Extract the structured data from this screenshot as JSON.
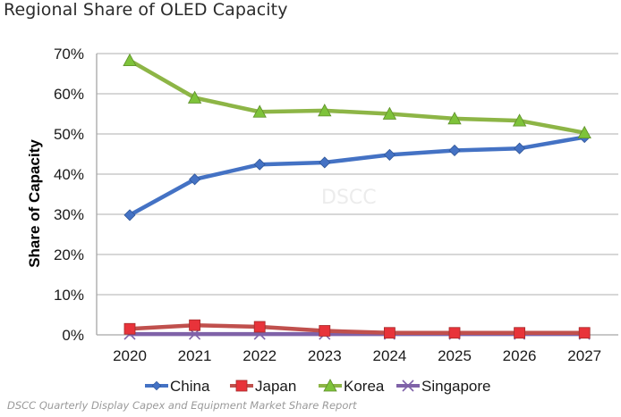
{
  "title": "Regional Share of OLED Capacity",
  "footer": "DSCC Quarterly Display Capex and Equipment Market Share Report",
  "watermark": "DSCC",
  "chart_data": {
    "type": "line",
    "title": "Regional Share of OLED Capacity",
    "xlabel": "",
    "ylabel": "Share of Capacity",
    "x": [
      "2020",
      "2021",
      "2022",
      "2023",
      "2024",
      "2025",
      "2026",
      "2027"
    ],
    "ylim": [
      0,
      70
    ],
    "yticks": [
      0,
      10,
      20,
      30,
      40,
      50,
      60,
      70
    ],
    "ytick_labels": [
      "0%",
      "10%",
      "20%",
      "30%",
      "40%",
      "50%",
      "60%",
      "70%"
    ],
    "grid": "horizontal",
    "legend_position": "bottom",
    "series": [
      {
        "name": "China",
        "color": "#4472c4",
        "marker": "diamond",
        "values": [
          29.8,
          38.7,
          42.4,
          42.9,
          44.8,
          45.9,
          46.4,
          49.2
        ]
      },
      {
        "name": "Japan",
        "color": "#c0504d",
        "marker": "square",
        "values": [
          1.5,
          2.4,
          2.0,
          1.0,
          0.5,
          0.5,
          0.5,
          0.5
        ]
      },
      {
        "name": "Korea",
        "color": "#8db546",
        "marker": "triangle",
        "values": [
          68.3,
          59.0,
          55.5,
          55.8,
          55.0,
          53.8,
          53.3,
          50.3
        ]
      },
      {
        "name": "Singapore",
        "color": "#7f62a8",
        "marker": "x",
        "values": [
          0.2,
          0.2,
          0.2,
          0.2,
          0.2,
          0.2,
          0.2,
          0.2
        ]
      }
    ]
  }
}
